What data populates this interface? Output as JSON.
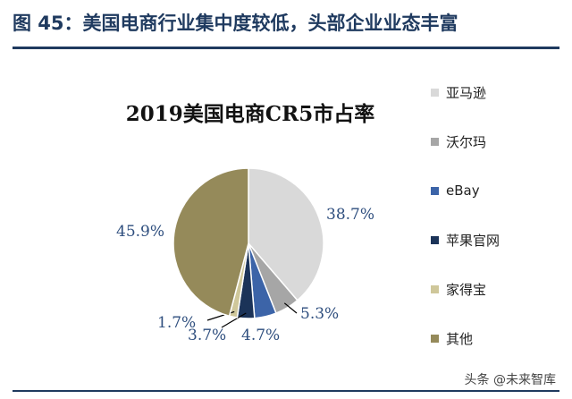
{
  "header": {
    "title": "图 45：美国电商行业集中度较低，头部企业业态丰富"
  },
  "chart_data": {
    "type": "pie",
    "title": "2019美国电商CR5市占率",
    "unit": "%",
    "categories": [
      "亚马逊",
      "沃尔玛",
      "eBay",
      "苹果官网",
      "家得宝",
      "其他"
    ],
    "values": [
      38.7,
      5.3,
      4.7,
      3.7,
      1.7,
      45.9
    ],
    "labels": [
      "38.7%",
      "5.3%",
      "4.7%",
      "3.7%",
      "1.7%",
      "45.9%"
    ],
    "colors": [
      "#d9d9d9",
      "#a6a6a6",
      "#3c64a8",
      "#1b3358",
      "#cfc79a",
      "#958a5a"
    ],
    "legend_position": "right"
  },
  "watermark": {
    "text": "头条 @未来智库"
  }
}
